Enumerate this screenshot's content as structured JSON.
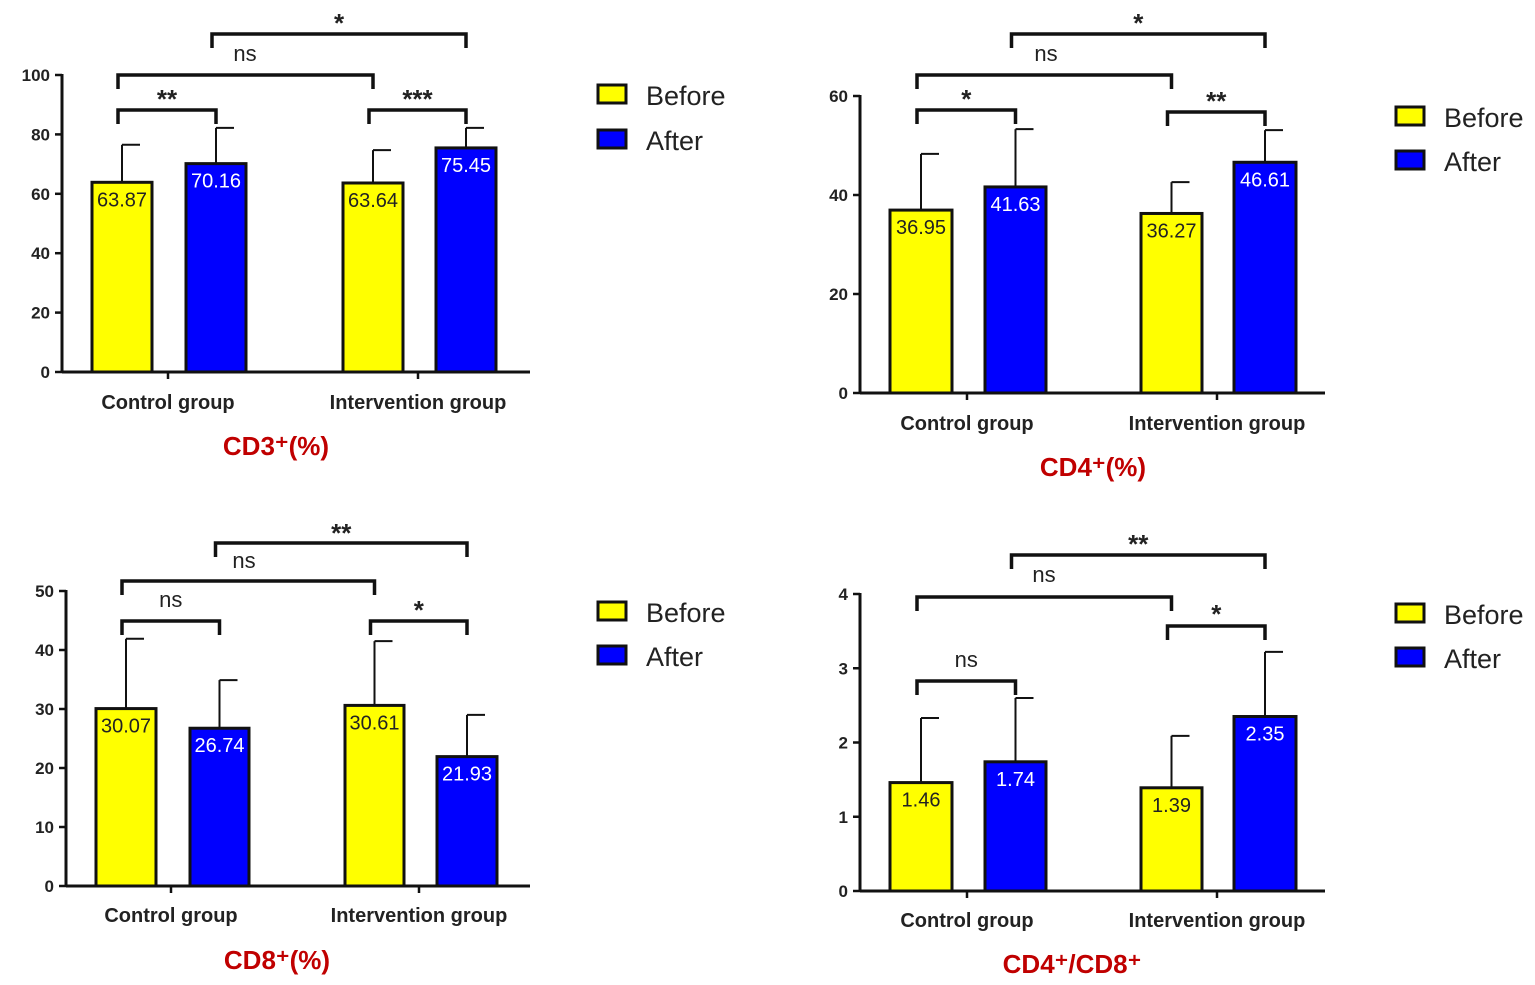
{
  "chart_data": [
    {
      "type": "bar",
      "title": "CD3⁺(%)",
      "categories": [
        "Control group",
        "Intervention group"
      ],
      "legend": [
        "Before",
        "After"
      ],
      "legend_placement": "right",
      "ylim": [
        0,
        100
      ],
      "yticks": [
        "0",
        "20",
        "40",
        "60",
        "80",
        "100"
      ],
      "series": [
        {
          "name": "Before",
          "color": "#ffff00",
          "values": [
            63.87,
            63.64
          ],
          "labels": [
            "63.87",
            "63.64"
          ],
          "error_top": [
            76.5,
            74.7
          ]
        },
        {
          "name": "After",
          "color": "#0000ff",
          "values": [
            70.16,
            75.45
          ],
          "labels": [
            "70.16",
            "75.45"
          ],
          "error_top": [
            82.2,
            82.2
          ]
        }
      ],
      "significance": [
        {
          "from": "Control group Before",
          "to": "Control group After",
          "label": "**"
        },
        {
          "from": "Intervention group Before",
          "to": "Intervention group After",
          "label": "***"
        },
        {
          "from": "Control group Before",
          "to": "Intervention group Before",
          "label": "ns"
        },
        {
          "from": "Control group After",
          "to": "Intervention group After",
          "label": "*"
        }
      ]
    },
    {
      "type": "bar",
      "title": "CD4⁺(%)",
      "categories": [
        "Control group",
        "Intervention group"
      ],
      "legend": [
        "Before",
        "After"
      ],
      "legend_placement": "right",
      "ylim": [
        0,
        60
      ],
      "yticks": [
        "0",
        "20",
        "40",
        "60"
      ],
      "series": [
        {
          "name": "Before",
          "color": "#ffff00",
          "values": [
            36.95,
            36.27
          ],
          "labels": [
            "36.95",
            "36.27"
          ],
          "error_top": [
            48.3,
            42.6
          ]
        },
        {
          "name": "After",
          "color": "#0000ff",
          "values": [
            41.63,
            46.61
          ],
          "labels": [
            "41.63",
            "46.61"
          ],
          "error_top": [
            53.3,
            53.1
          ]
        }
      ],
      "significance": [
        {
          "from": "Control group Before",
          "to": "Control group After",
          "label": "*"
        },
        {
          "from": "Intervention group Before",
          "to": "Intervention group After",
          "label": "**"
        },
        {
          "from": "Control group Before",
          "to": "Intervention group Before",
          "label": "ns"
        },
        {
          "from": "Control group After",
          "to": "Intervention group After",
          "label": "*"
        }
      ]
    },
    {
      "type": "bar",
      "title": "CD8⁺(%)",
      "categories": [
        "Control group",
        "Intervention group"
      ],
      "legend": [
        "Before",
        "After"
      ],
      "legend_placement": "right",
      "ylim": [
        0,
        50
      ],
      "yticks": [
        "0",
        "10",
        "20",
        "30",
        "40",
        "50"
      ],
      "series": [
        {
          "name": "Before",
          "color": "#ffff00",
          "values": [
            30.07,
            30.61
          ],
          "labels": [
            "30.07",
            "30.61"
          ],
          "error_top": [
            41.9,
            41.5
          ]
        },
        {
          "name": "After",
          "color": "#0000ff",
          "values": [
            26.74,
            21.93
          ],
          "labels": [
            "26.74",
            "21.93"
          ],
          "error_top": [
            34.9,
            29.0
          ]
        }
      ],
      "significance": [
        {
          "from": "Control group Before",
          "to": "Control group After",
          "label": "ns"
        },
        {
          "from": "Intervention group Before",
          "to": "Intervention group After",
          "label": "*"
        },
        {
          "from": "Control group Before",
          "to": "Intervention group Before",
          "label": "ns"
        },
        {
          "from": "Control group After",
          "to": "Intervention group After",
          "label": "**"
        }
      ]
    },
    {
      "type": "bar",
      "title": "CD4⁺/CD8⁺",
      "categories": [
        "Control group",
        "Intervention group"
      ],
      "legend": [
        "Before",
        "After"
      ],
      "legend_placement": "right",
      "ylim": [
        0,
        4
      ],
      "yticks": [
        "0",
        "1",
        "2",
        "3",
        "4"
      ],
      "series": [
        {
          "name": "Before",
          "color": "#ffff00",
          "values": [
            1.46,
            1.39
          ],
          "labels": [
            "1.46",
            "1.39"
          ],
          "error_top": [
            2.33,
            2.09
          ]
        },
        {
          "name": "After",
          "color": "#0000ff",
          "values": [
            1.74,
            2.35
          ],
          "labels": [
            "1.74",
            "2.35"
          ],
          "error_top": [
            2.6,
            3.22
          ]
        }
      ],
      "significance": [
        {
          "from": "Control group Before",
          "to": "Control group After",
          "label": "ns"
        },
        {
          "from": "Intervention group Before",
          "to": "Intervention group After",
          "label": "*"
        },
        {
          "from": "Control group Before",
          "to": "Intervention group Before",
          "label": "ns"
        },
        {
          "from": "Control group After",
          "to": "Intervention group After",
          "label": "**"
        }
      ]
    }
  ]
}
